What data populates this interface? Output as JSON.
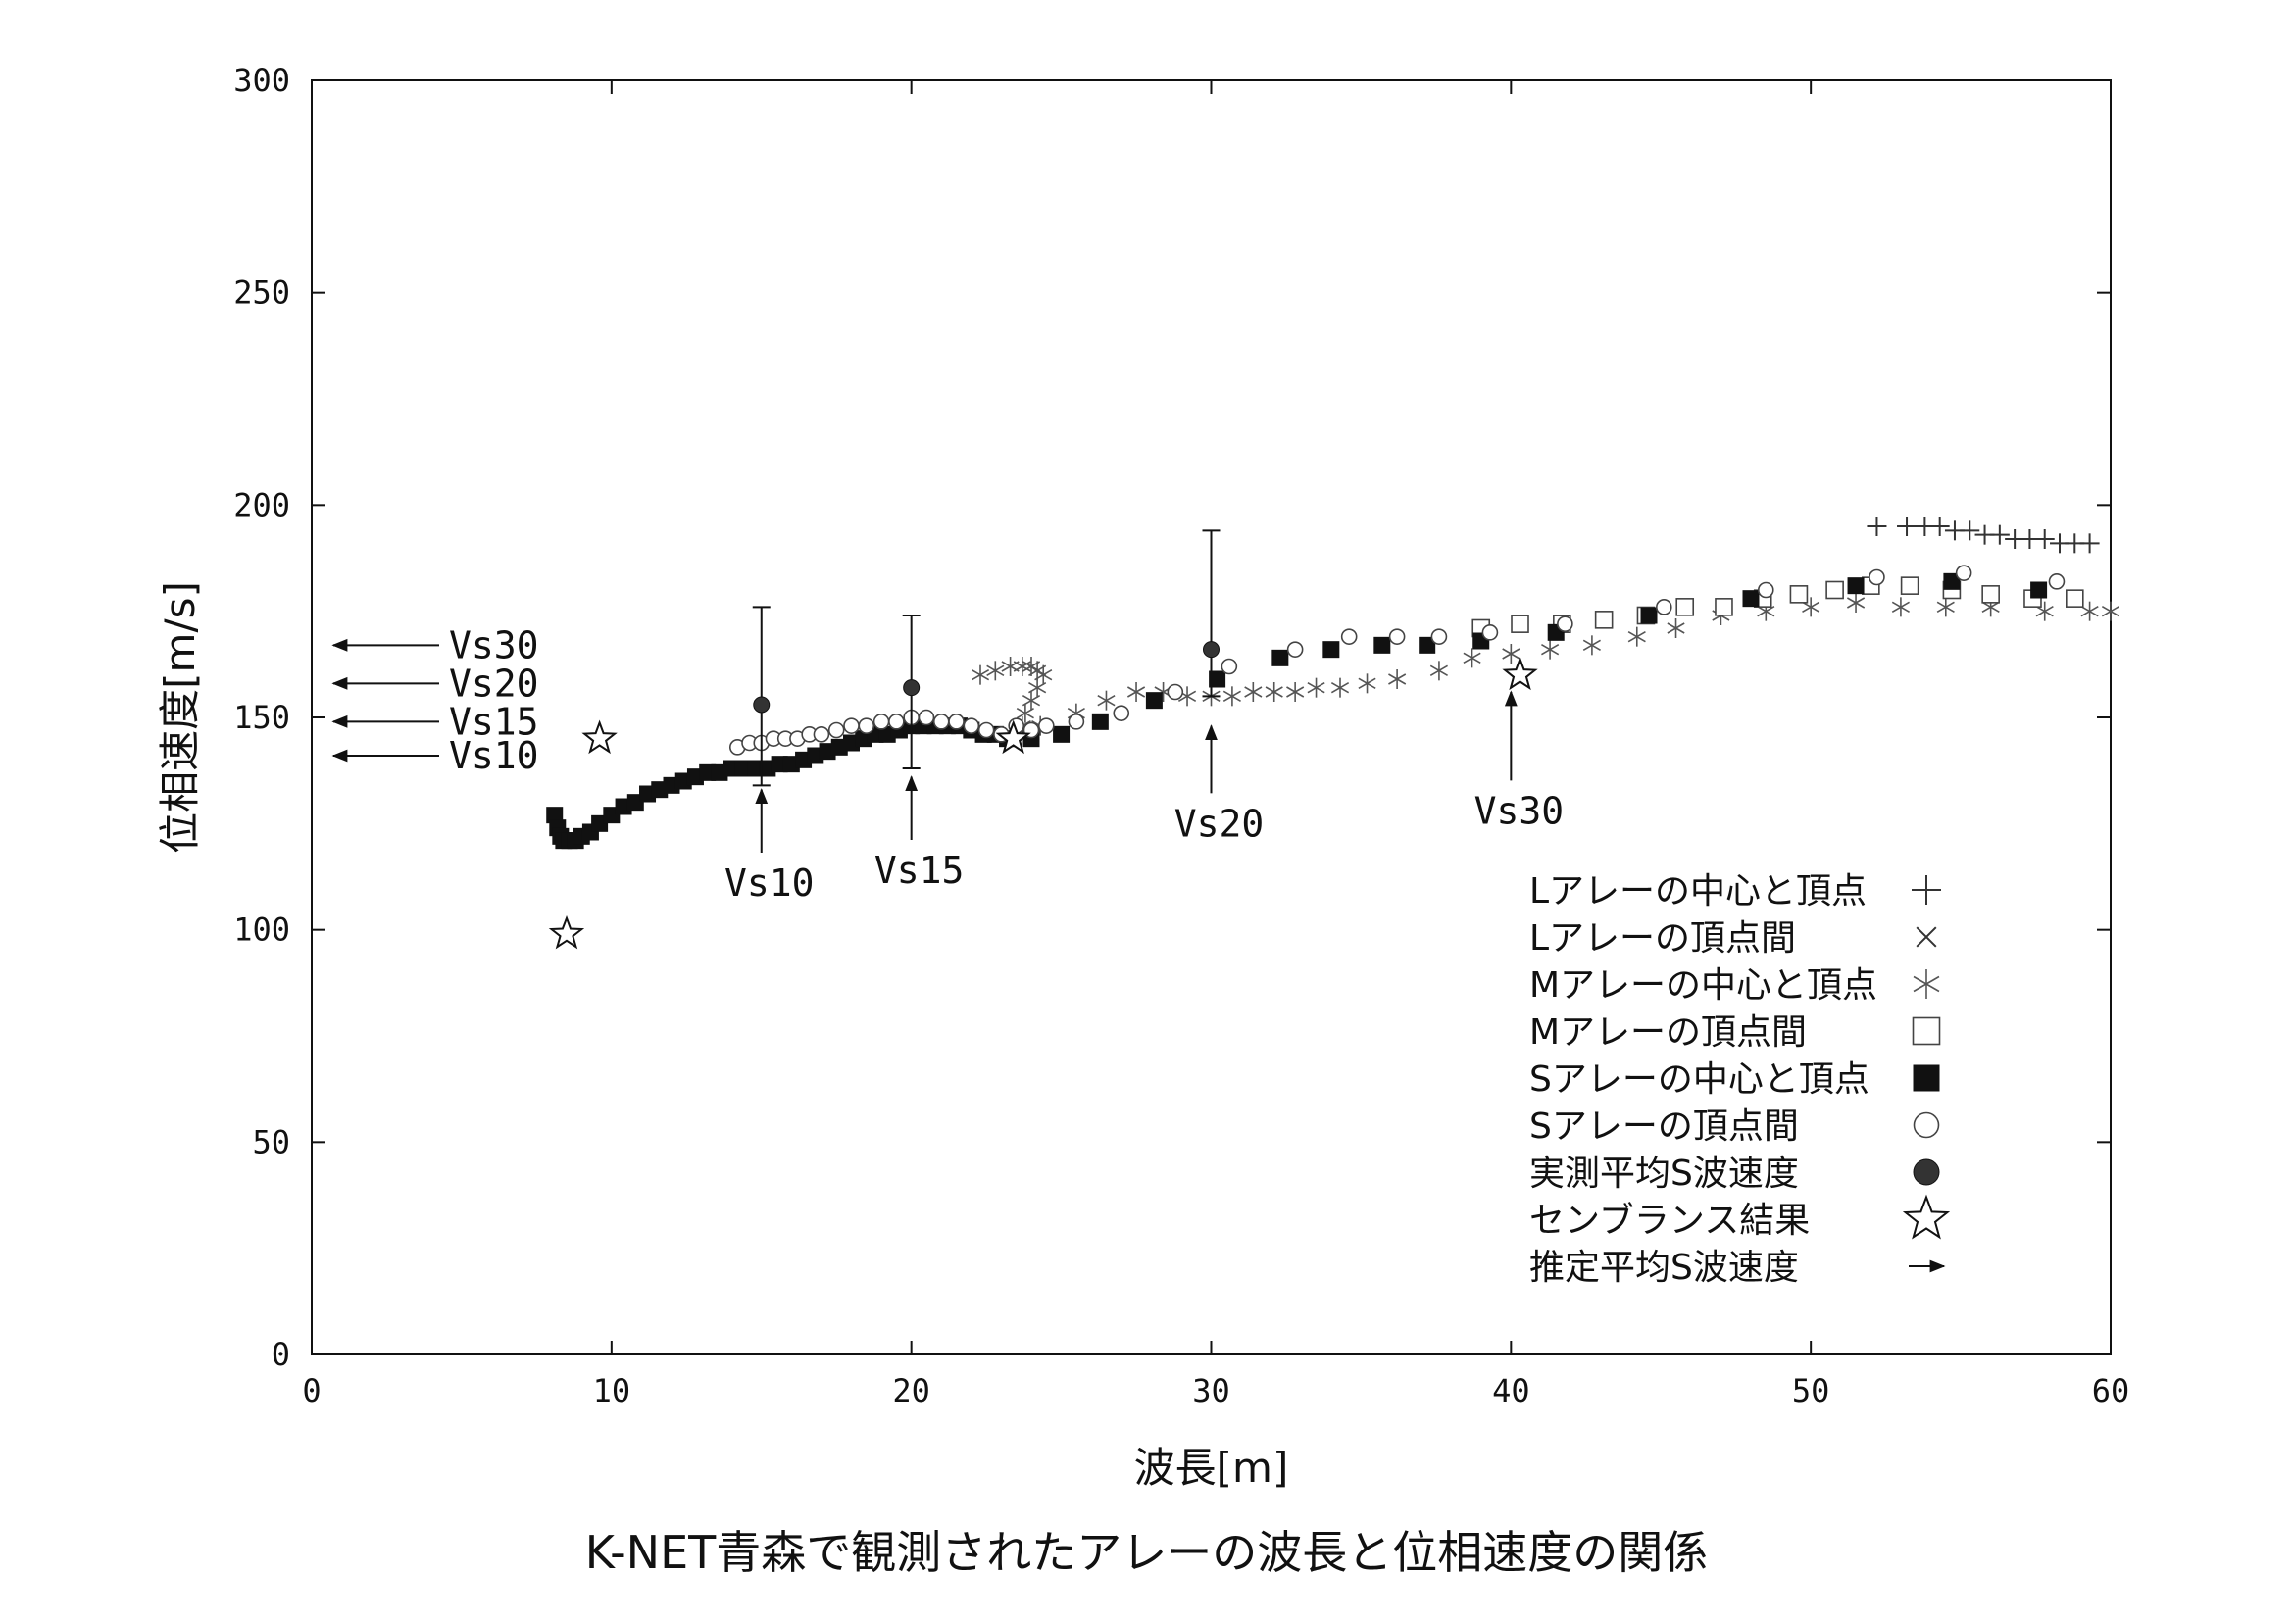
{
  "chart_data": {
    "type": "scatter",
    "title": "K-NET青森で観測されたアレーの波長と位相速度の関係",
    "xlabel": "波長[m]",
    "ylabel": "位相速度[m/s]",
    "xlim": [
      0,
      60
    ],
    "ylim": [
      0,
      300
    ],
    "xticks": [
      0,
      10,
      20,
      30,
      40,
      50,
      60
    ],
    "yticks": [
      0,
      50,
      100,
      150,
      200,
      250,
      300
    ],
    "grid": false,
    "legend_position": "bottom-right",
    "series": [
      {
        "name": "Lアレーの中心と頂点",
        "marker": "plus",
        "points": [
          [
            52.2,
            195
          ],
          [
            53.2,
            195
          ],
          [
            53.8,
            195
          ],
          [
            54.3,
            195
          ],
          [
            54.8,
            194
          ],
          [
            55.3,
            194
          ],
          [
            55.8,
            193
          ],
          [
            56.3,
            193
          ],
          [
            56.8,
            192
          ],
          [
            57.3,
            192
          ],
          [
            57.8,
            192
          ],
          [
            58.3,
            191
          ],
          [
            58.8,
            191
          ],
          [
            59.3,
            191
          ]
        ]
      },
      {
        "name": "Lアレーの頂点間",
        "marker": "cross",
        "points": []
      },
      {
        "name": "Mアレーの中心と頂点",
        "marker": "asterisk",
        "points": [
          [
            22.3,
            160
          ],
          [
            22.8,
            161
          ],
          [
            23.3,
            162
          ],
          [
            23.7,
            162
          ],
          [
            24.0,
            162
          ],
          [
            24.2,
            161
          ],
          [
            24.4,
            160
          ],
          [
            24.2,
            157
          ],
          [
            24.0,
            154
          ],
          [
            23.8,
            151
          ],
          [
            23.7,
            148
          ],
          [
            24.3,
            148
          ],
          [
            25.5,
            151
          ],
          [
            26.5,
            154
          ],
          [
            27.5,
            156
          ],
          [
            28.4,
            156
          ],
          [
            29.2,
            155
          ],
          [
            30.0,
            155
          ],
          [
            30.7,
            155
          ],
          [
            31.4,
            156
          ],
          [
            32.1,
            156
          ],
          [
            32.8,
            156
          ],
          [
            33.5,
            157
          ],
          [
            34.3,
            157
          ],
          [
            35.2,
            158
          ],
          [
            36.2,
            159
          ],
          [
            37.6,
            161
          ],
          [
            38.7,
            164
          ],
          [
            40.0,
            165
          ],
          [
            41.3,
            166
          ],
          [
            42.7,
            167
          ],
          [
            44.2,
            169
          ],
          [
            45.5,
            171
          ],
          [
            47.0,
            174
          ],
          [
            48.5,
            175
          ],
          [
            50.0,
            176
          ],
          [
            51.5,
            177
          ],
          [
            53.0,
            176
          ],
          [
            54.5,
            176
          ],
          [
            56.0,
            176
          ],
          [
            57.8,
            175
          ],
          [
            59.3,
            175
          ],
          [
            60.0,
            175
          ]
        ]
      },
      {
        "name": "Mアレーの頂点間",
        "marker": "open-square",
        "points": [
          [
            39.0,
            171
          ],
          [
            40.3,
            172
          ],
          [
            41.7,
            172
          ],
          [
            43.1,
            173
          ],
          [
            44.5,
            174
          ],
          [
            45.8,
            176
          ],
          [
            47.1,
            176
          ],
          [
            48.4,
            178
          ],
          [
            49.6,
            179
          ],
          [
            50.8,
            180
          ],
          [
            52.0,
            181
          ],
          [
            53.3,
            181
          ],
          [
            54.7,
            180
          ],
          [
            56.0,
            179
          ],
          [
            57.4,
            178
          ],
          [
            58.8,
            178
          ]
        ]
      },
      {
        "name": "Sアレーの中心と頂点",
        "marker": "filled-square",
        "points": [
          [
            8.1,
            127
          ],
          [
            8.2,
            124
          ],
          [
            8.3,
            122
          ],
          [
            8.4,
            121
          ],
          [
            8.6,
            121
          ],
          [
            8.8,
            121
          ],
          [
            9.0,
            122
          ],
          [
            9.3,
            123
          ],
          [
            9.6,
            125
          ],
          [
            10.0,
            127
          ],
          [
            10.4,
            129
          ],
          [
            10.8,
            130
          ],
          [
            11.2,
            132
          ],
          [
            11.6,
            133
          ],
          [
            12.0,
            134
          ],
          [
            12.4,
            135
          ],
          [
            12.8,
            136
          ],
          [
            13.2,
            137
          ],
          [
            13.6,
            137
          ],
          [
            14.0,
            138
          ],
          [
            14.4,
            138
          ],
          [
            14.8,
            138
          ],
          [
            15.2,
            138
          ],
          [
            15.6,
            139
          ],
          [
            16.0,
            139
          ],
          [
            16.4,
            140
          ],
          [
            16.8,
            141
          ],
          [
            17.2,
            142
          ],
          [
            17.6,
            143
          ],
          [
            18.0,
            144
          ],
          [
            18.4,
            145
          ],
          [
            18.8,
            146
          ],
          [
            19.2,
            146
          ],
          [
            19.6,
            147
          ],
          [
            20.0,
            148
          ],
          [
            20.4,
            148
          ],
          [
            20.8,
            148
          ],
          [
            21.2,
            148
          ],
          [
            21.6,
            148
          ],
          [
            22.0,
            147
          ],
          [
            22.4,
            146
          ],
          [
            22.8,
            146
          ],
          [
            23.2,
            145
          ],
          [
            24.0,
            145
          ],
          [
            25.0,
            146
          ],
          [
            26.3,
            149
          ],
          [
            28.1,
            154
          ],
          [
            30.2,
            159
          ],
          [
            32.3,
            164
          ],
          [
            34.0,
            166
          ],
          [
            35.7,
            167
          ],
          [
            37.2,
            167
          ],
          [
            39.0,
            168
          ],
          [
            41.5,
            170
          ],
          [
            44.6,
            174
          ],
          [
            48.0,
            178
          ],
          [
            51.5,
            181
          ],
          [
            54.7,
            182
          ],
          [
            57.6,
            180
          ]
        ]
      },
      {
        "name": "Sアレーの頂点間",
        "marker": "open-circle",
        "points": [
          [
            14.2,
            143
          ],
          [
            14.6,
            144
          ],
          [
            15.0,
            144
          ],
          [
            15.4,
            145
          ],
          [
            15.8,
            145
          ],
          [
            16.2,
            145
          ],
          [
            16.6,
            146
          ],
          [
            17.0,
            146
          ],
          [
            17.5,
            147
          ],
          [
            18.0,
            148
          ],
          [
            18.5,
            148
          ],
          [
            19.0,
            149
          ],
          [
            19.5,
            149
          ],
          [
            20.0,
            150
          ],
          [
            20.5,
            150
          ],
          [
            21.0,
            149
          ],
          [
            21.5,
            149
          ],
          [
            22.0,
            148
          ],
          [
            22.5,
            147
          ],
          [
            23.0,
            146
          ],
          [
            23.5,
            148
          ],
          [
            24.0,
            147
          ],
          [
            24.5,
            148
          ],
          [
            25.5,
            149
          ],
          [
            27.0,
            151
          ],
          [
            28.8,
            156
          ],
          [
            30.6,
            162
          ],
          [
            32.8,
            166
          ],
          [
            34.6,
            169
          ],
          [
            36.2,
            169
          ],
          [
            37.6,
            169
          ],
          [
            39.3,
            170
          ],
          [
            41.8,
            172
          ],
          [
            45.1,
            176
          ],
          [
            48.5,
            180
          ],
          [
            52.2,
            183
          ],
          [
            55.1,
            184
          ],
          [
            58.2,
            182
          ]
        ]
      },
      {
        "name": "実測平均S波速度",
        "marker": "filled-circle",
        "points": [
          [
            15,
            153
          ],
          [
            20,
            157
          ],
          [
            30,
            166
          ]
        ],
        "error_bars": [
          [
            134,
            176
          ],
          [
            138,
            174
          ],
          [
            155,
            194
          ]
        ]
      },
      {
        "name": "センブランス結果",
        "marker": "star",
        "points": [
          [
            8.5,
            99
          ],
          [
            9.6,
            145
          ],
          [
            23.4,
            145
          ],
          [
            40.3,
            160
          ]
        ]
      },
      {
        "name": "推定平均S波速度",
        "marker": "arrow",
        "points": [
          [
            0,
            141
          ],
          [
            0,
            149
          ],
          [
            0,
            158
          ],
          [
            0,
            167
          ]
        ]
      }
    ],
    "annotations": {
      "left_arrows": [
        {
          "label": "Vs30",
          "y": 167
        },
        {
          "label": "Vs20",
          "y": 158
        },
        {
          "label": "Vs15",
          "y": 149
        },
        {
          "label": "Vs10",
          "y": 141
        }
      ],
      "up_arrows": [
        {
          "label": "Vs10",
          "x": 15,
          "y": 133,
          "label_y": 108
        },
        {
          "label": "Vs15",
          "x": 20,
          "y": 136,
          "label_y": 111
        },
        {
          "label": "Vs20",
          "x": 30,
          "y": 148,
          "label_y": 122
        },
        {
          "label": "Vs30",
          "x": 40,
          "y": 156,
          "label_y": 125
        }
      ]
    }
  }
}
